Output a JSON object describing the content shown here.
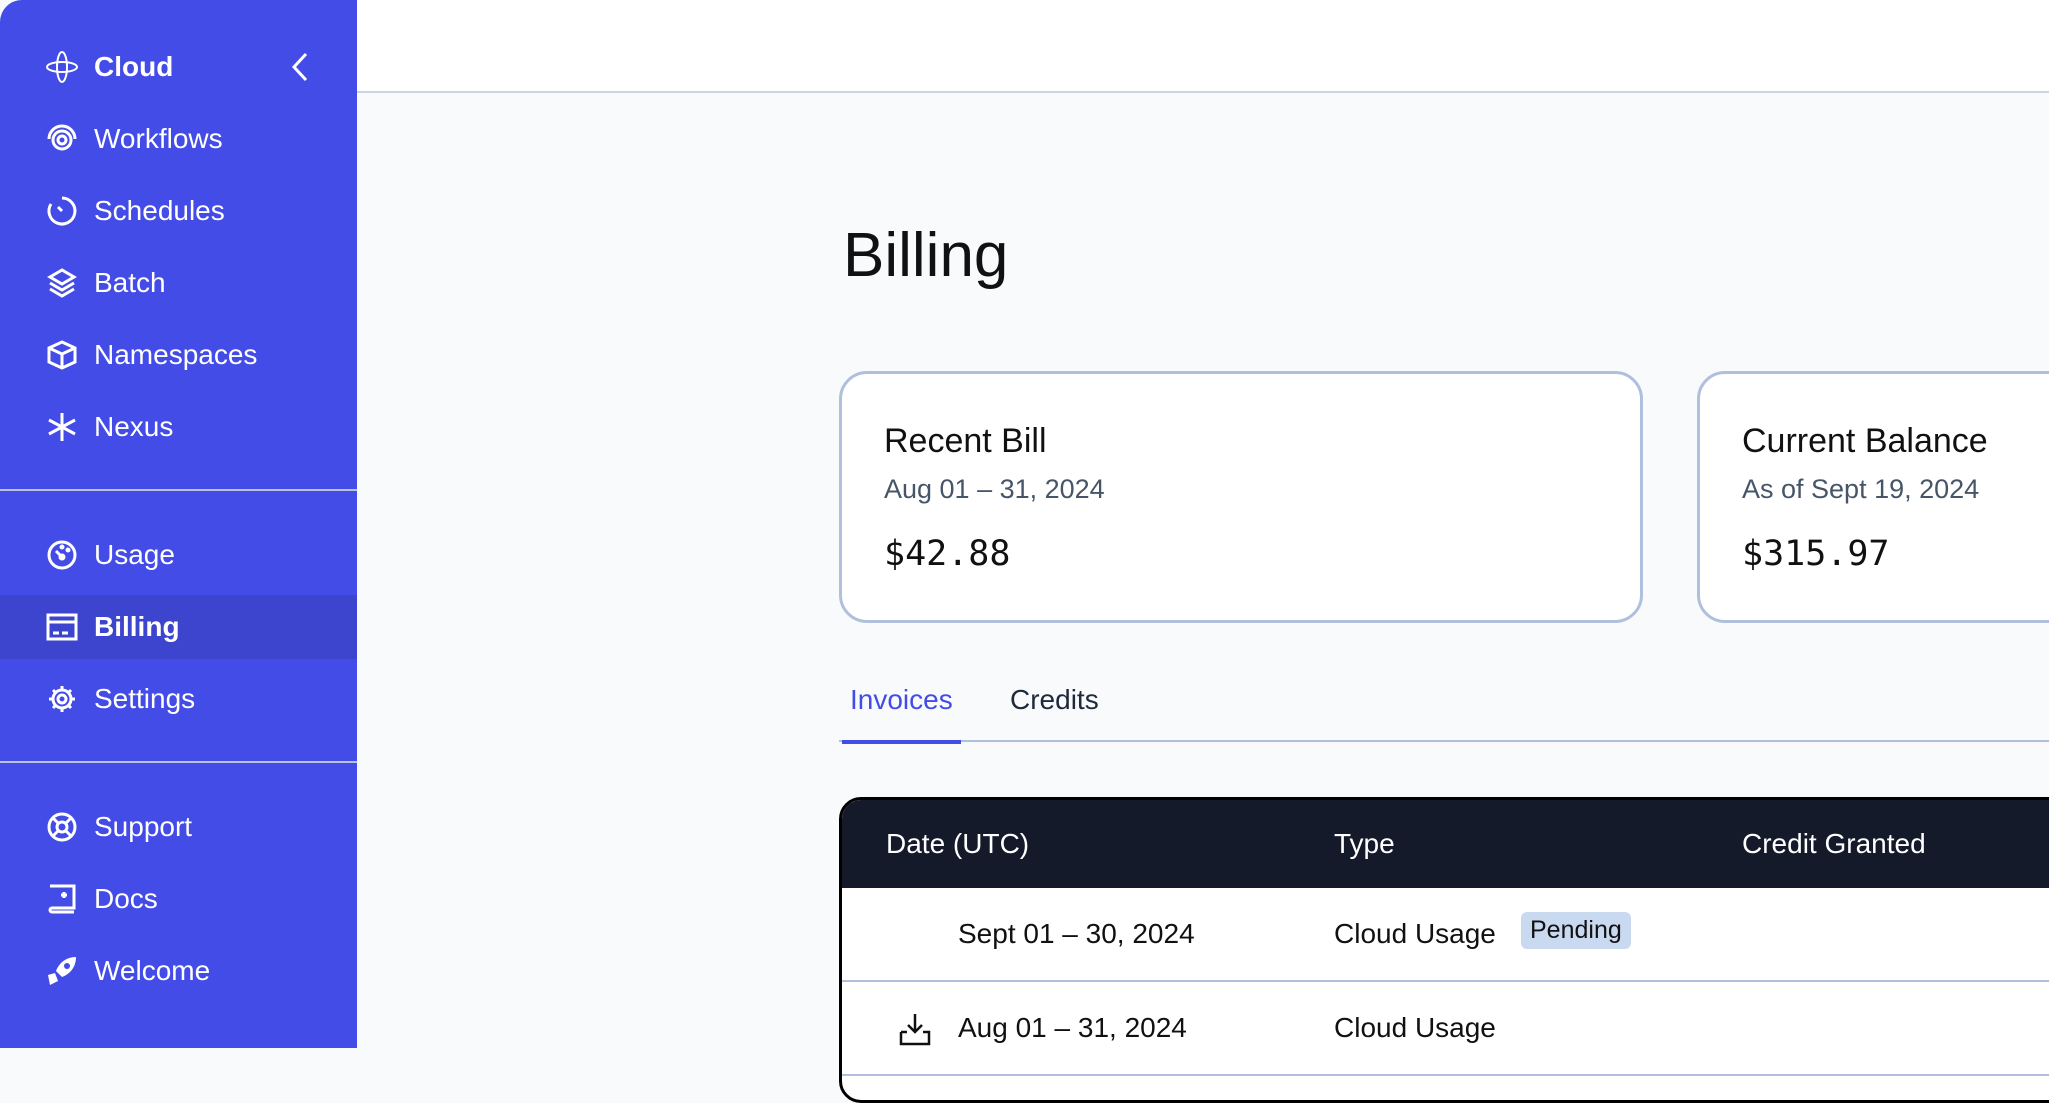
{
  "sidebar": {
    "brand": "Cloud",
    "items": [
      {
        "label": "Workflows",
        "icon": "workflows-icon"
      },
      {
        "label": "Schedules",
        "icon": "clock-icon"
      },
      {
        "label": "Batch",
        "icon": "layers-icon"
      },
      {
        "label": "Namespaces",
        "icon": "cube-icon"
      },
      {
        "label": "Nexus",
        "icon": "asterisk-icon"
      },
      {
        "label": "Usage",
        "icon": "gauge-icon"
      },
      {
        "label": "Billing",
        "icon": "credit-card-icon",
        "active": true
      },
      {
        "label": "Settings",
        "icon": "gear-icon"
      },
      {
        "label": "Support",
        "icon": "lifebuoy-icon"
      },
      {
        "label": "Docs",
        "icon": "book-icon"
      },
      {
        "label": "Welcome",
        "icon": "rocket-icon"
      }
    ]
  },
  "page": {
    "title": "Billing"
  },
  "cards": [
    {
      "title": "Recent Bill",
      "subtitle": "Aug 01 – 31, 2024",
      "amount": "$42.88"
    },
    {
      "title": "Current Balance",
      "subtitle": "As of Sept 19, 2024",
      "amount": "$315.97"
    }
  ],
  "tabs": [
    {
      "label": "Invoices",
      "active": true
    },
    {
      "label": "Credits"
    }
  ],
  "table": {
    "columns": [
      "Date (UTC)",
      "Type",
      "Credit Granted"
    ],
    "rows": [
      {
        "date": "Sept 01 – 30, 2024",
        "type": "Cloud Usage",
        "badge": "Pending"
      },
      {
        "date": "Aug 01 – 31, 2024",
        "type": "Cloud Usage",
        "download": true
      }
    ]
  },
  "colors": {
    "accent": "#444ce7",
    "table_header": "#141a29",
    "badge": "#c8d9f0"
  }
}
